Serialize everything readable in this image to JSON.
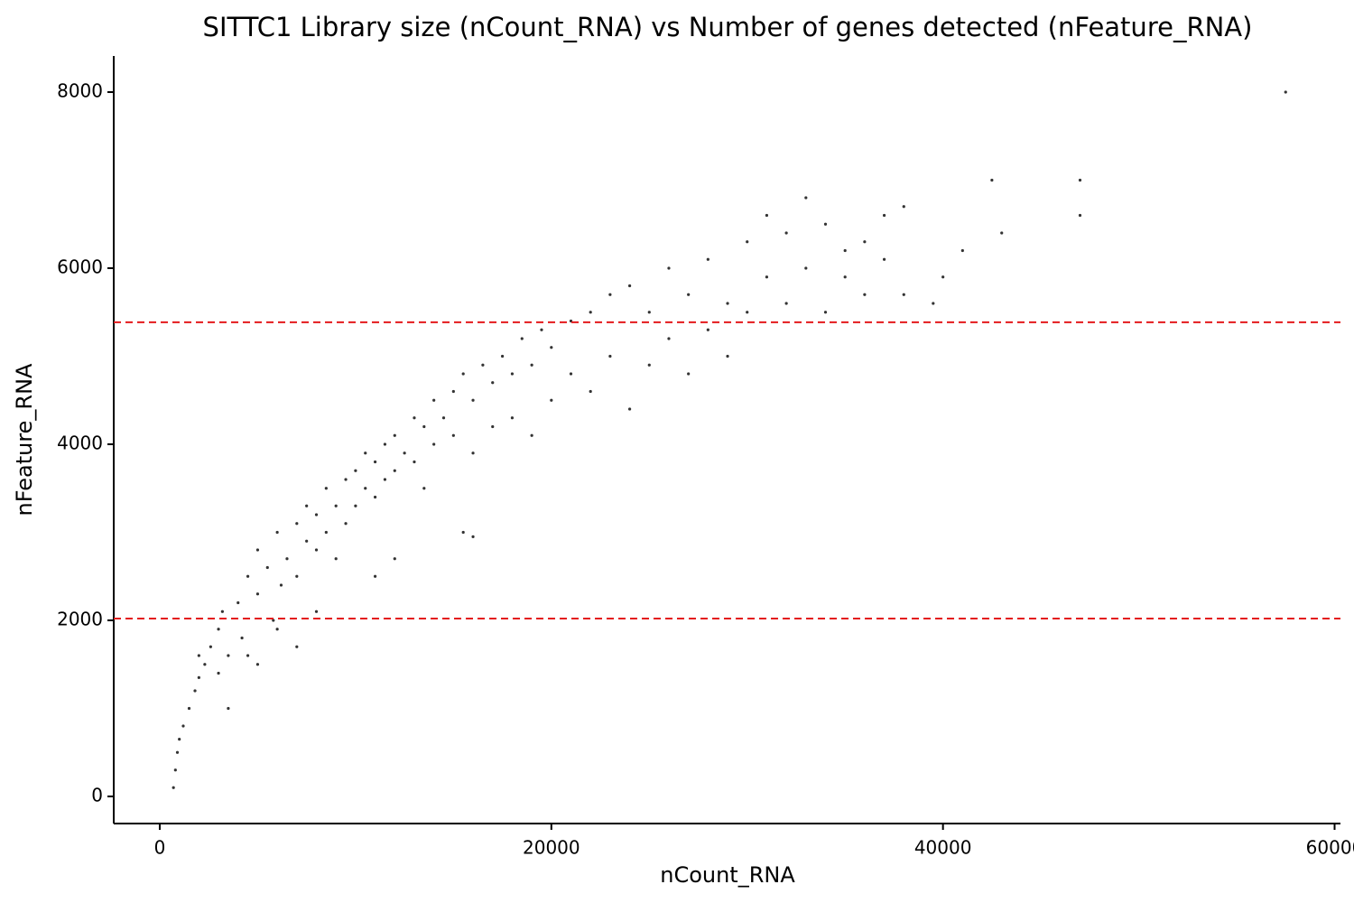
{
  "chart_data": {
    "type": "scatter",
    "title": "SITTC1 Library size (nCount_RNA) vs Number of genes detected (nFeature_RNA)",
    "x_label": "nCount_RNA",
    "y_label": "nFeature_RNA",
    "xlim": [
      -2350,
      60300
    ],
    "ylim": [
      -308,
      8410
    ],
    "xticks": [
      0,
      20000,
      40000,
      60000
    ],
    "yticks": [
      0,
      2000,
      4000,
      6000,
      8000
    ],
    "color": "#000000",
    "hlines": [
      2020,
      5385
    ],
    "hline_color": "#e41a1c",
    "x": [
      700,
      800,
      900,
      1000,
      1200,
      1500,
      1800,
      2000,
      2300,
      2600,
      3000,
      3200,
      3500,
      4000,
      4200,
      4500,
      5000,
      5000,
      5500,
      5800,
      6000,
      6200,
      6500,
      7000,
      7000,
      7500,
      7500,
      8000,
      8000,
      8500,
      8500,
      9000,
      9000,
      9500,
      9500,
      10000,
      10000,
      10500,
      10500,
      11000,
      11000,
      11500,
      11500,
      12000,
      12000,
      12500,
      13000,
      13000,
      13500,
      14000,
      14000,
      14500,
      15000,
      15000,
      15500,
      16000,
      16000,
      16500,
      17000,
      17000,
      17500,
      18000,
      18000,
      18500,
      19000,
      19000,
      19500,
      20000,
      20000,
      21000,
      21000,
      22000,
      22000,
      23000,
      23000,
      24000,
      24000,
      25000,
      25000,
      26000,
      26000,
      27000,
      27000,
      28000,
      28000,
      29000,
      29000,
      30000,
      30000,
      31000,
      31000,
      32000,
      32000,
      33000,
      33000,
      34000,
      34000,
      35000,
      35000,
      36000,
      36000,
      37000,
      37000,
      38000,
      38000,
      39500,
      40000,
      41000,
      42500,
      43000,
      47000,
      47000,
      57500,
      2000,
      3000,
      3500,
      4500,
      5000,
      6000,
      7000,
      8000,
      12000,
      15500,
      16000,
      13500,
      11000
    ],
    "y": [
      100,
      300,
      500,
      650,
      800,
      1000,
      1200,
      1350,
      1500,
      1700,
      1900,
      2100,
      1600,
      2200,
      1800,
      2500,
      2300,
      2800,
      2600,
      2000,
      3000,
      2400,
      2700,
      3100,
      2500,
      2900,
      3300,
      3200,
      2800,
      3500,
      3000,
      3300,
      2700,
      3600,
      3100,
      3700,
      3300,
      3500,
      3900,
      3800,
      3400,
      4000,
      3600,
      4100,
      3700,
      3900,
      4300,
      3800,
      4200,
      4500,
      4000,
      4300,
      4600,
      4100,
      4800,
      4500,
      3900,
      4900,
      4700,
      4200,
      5000,
      4800,
      4300,
      5200,
      4900,
      4100,
      5300,
      5100,
      4500,
      5400,
      4800,
      5500,
      4600,
      5700,
      5000,
      5800,
      4400,
      5500,
      4900,
      6000,
      5200,
      5700,
      4800,
      6100,
      5300,
      5600,
      5000,
      6300,
      5500,
      5900,
      6600,
      5600,
      6400,
      6000,
      6800,
      5500,
      6500,
      5900,
      6200,
      6300,
      5700,
      6100,
      6600,
      6700,
      5700,
      5600,
      5900,
      6200,
      7000,
      6400,
      7000,
      6600,
      8000,
      1600,
      1400,
      1000,
      1600,
      1500,
      1900,
      1700,
      2100,
      2700,
      3000,
      2950,
      3500,
      2500
    ]
  }
}
